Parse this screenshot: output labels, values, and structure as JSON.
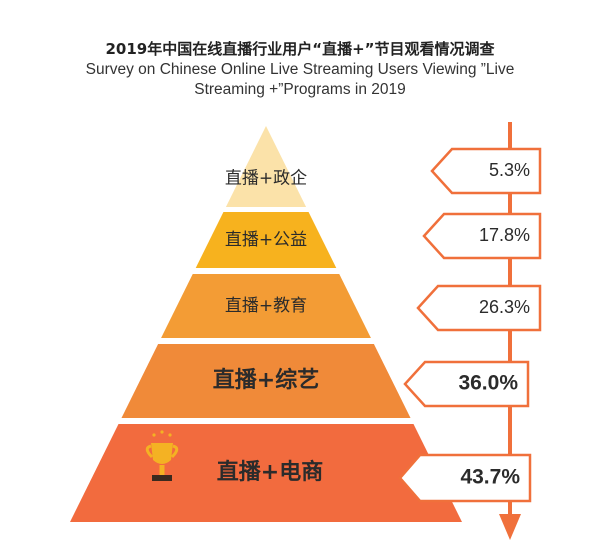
{
  "chart_data": {
    "type": "bar",
    "title": "2019年中国在线直播行业用户“直播+”节目观看情况调查",
    "subtitle_line1": "Survey on Chinese Online Live Streaming Users Viewing ”Live",
    "subtitle_line2": "Streaming +”Programs in 2019",
    "categories": [
      "直播+政企",
      "直播+公益",
      "直播+教育",
      "直播+综艺",
      "直播+电商"
    ],
    "values": [
      5.3,
      17.8,
      26.3,
      36.0,
      43.7
    ],
    "value_labels": [
      "5.3%",
      "17.8%",
      "26.3%",
      "36.0%",
      "43.7%"
    ],
    "unit": "%",
    "colors": [
      "#FBE2A9",
      "#F7B21E",
      "#F39C35",
      "#F08A39",
      "#F26B3E"
    ],
    "arrow_color": "#F0703B",
    "trophy_color": "#F4B223",
    "icons": [
      "trophy-icon"
    ]
  }
}
